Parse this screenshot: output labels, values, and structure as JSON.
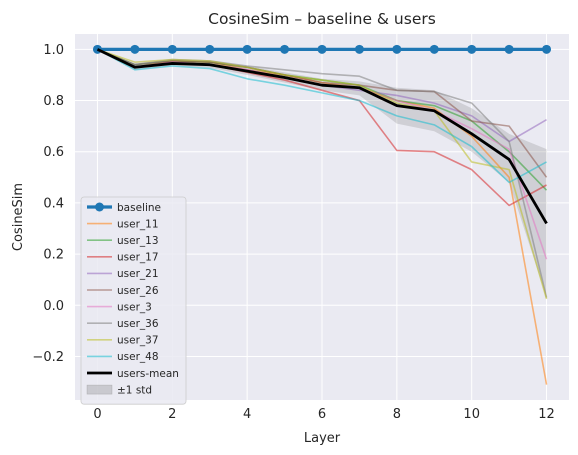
{
  "chart_data": {
    "type": "line",
    "title": "CosineSim – baseline & users",
    "xlabel": "Layer",
    "ylabel": "CosineSim",
    "xlim": [
      -0.6,
      12.6
    ],
    "ylim": [
      -0.37,
      1.06
    ],
    "xticks": [
      0,
      2,
      4,
      6,
      8,
      10,
      12
    ],
    "xtick_labels": [
      "0",
      "2",
      "4",
      "6",
      "8",
      "10",
      "12"
    ],
    "yticks": [
      -0.2,
      0.0,
      0.2,
      0.4,
      0.6,
      0.8,
      1.0
    ],
    "ytick_labels": [
      "−0.2",
      "0.0",
      "0.2",
      "0.4",
      "0.6",
      "0.8",
      "1.0"
    ],
    "grid": true,
    "legend_position": "lower-left",
    "x": [
      0,
      1,
      2,
      3,
      4,
      5,
      6,
      7,
      8,
      9,
      10,
      11,
      12
    ],
    "baseline": {
      "name": "baseline",
      "color": "#1f77b4",
      "values": [
        1.0,
        1.0,
        1.0,
        1.0,
        1.0,
        1.0,
        1.0,
        1.0,
        1.0,
        1.0,
        1.0,
        1.0,
        1.0
      ]
    },
    "series": [
      {
        "name": "user_11",
        "color": "#ff7f0e",
        "values": [
          1.0,
          0.93,
          0.955,
          0.95,
          0.92,
          0.9,
          0.87,
          0.85,
          0.8,
          0.77,
          0.66,
          0.5,
          -0.31
        ]
      },
      {
        "name": "user_13",
        "color": "#2ca02c",
        "values": [
          1.0,
          0.94,
          0.955,
          0.95,
          0.93,
          0.9,
          0.88,
          0.86,
          0.8,
          0.78,
          0.72,
          0.6,
          0.45
        ]
      },
      {
        "name": "user_17",
        "color": "#d62728",
        "values": [
          1.0,
          0.93,
          0.95,
          0.94,
          0.91,
          0.88,
          0.84,
          0.8,
          0.605,
          0.6,
          0.53,
          0.39,
          0.47
        ]
      },
      {
        "name": "user_21",
        "color": "#9467bd",
        "values": [
          1.0,
          0.93,
          0.95,
          0.94,
          0.92,
          0.89,
          0.86,
          0.84,
          0.82,
          0.79,
          0.74,
          0.64,
          0.725
        ]
      },
      {
        "name": "user_26",
        "color": "#8c564b",
        "values": [
          1.0,
          0.94,
          0.955,
          0.95,
          0.93,
          0.9,
          0.87,
          0.86,
          0.84,
          0.835,
          0.72,
          0.7,
          0.5
        ]
      },
      {
        "name": "user_3",
        "color": "#e377c2",
        "values": [
          1.0,
          0.93,
          0.95,
          0.94,
          0.92,
          0.89,
          0.86,
          0.85,
          0.8,
          0.76,
          0.69,
          0.61,
          0.18
        ]
      },
      {
        "name": "user_36",
        "color": "#7f7f7f",
        "values": [
          1.0,
          0.94,
          0.96,
          0.955,
          0.935,
          0.92,
          0.905,
          0.895,
          0.84,
          0.835,
          0.79,
          0.64,
          0.03
        ]
      },
      {
        "name": "user_37",
        "color": "#bcbd22",
        "values": [
          1.0,
          0.95,
          0.96,
          0.955,
          0.93,
          0.9,
          0.88,
          0.86,
          0.79,
          0.76,
          0.56,
          0.53,
          0.025
        ]
      },
      {
        "name": "user_48",
        "color": "#17becf",
        "values": [
          1.0,
          0.92,
          0.935,
          0.925,
          0.885,
          0.86,
          0.83,
          0.8,
          0.74,
          0.705,
          0.62,
          0.48,
          0.56
        ]
      }
    ],
    "mean": {
      "name": "users-mean",
      "color": "#000000",
      "values": [
        1.0,
        0.93,
        0.945,
        0.94,
        0.915,
        0.89,
        0.86,
        0.85,
        0.78,
        0.76,
        0.67,
        0.57,
        0.32
      ]
    },
    "std_band": {
      "name": "±1 std",
      "color": "#7f7f7f",
      "lower": [
        1.0,
        0.92,
        0.937,
        0.928,
        0.9,
        0.87,
        0.84,
        0.82,
        0.71,
        0.68,
        0.6,
        0.48,
        0.03
      ],
      "upper": [
        1.0,
        0.945,
        0.958,
        0.952,
        0.935,
        0.91,
        0.885,
        0.875,
        0.85,
        0.84,
        0.77,
        0.67,
        0.61
      ]
    }
  }
}
